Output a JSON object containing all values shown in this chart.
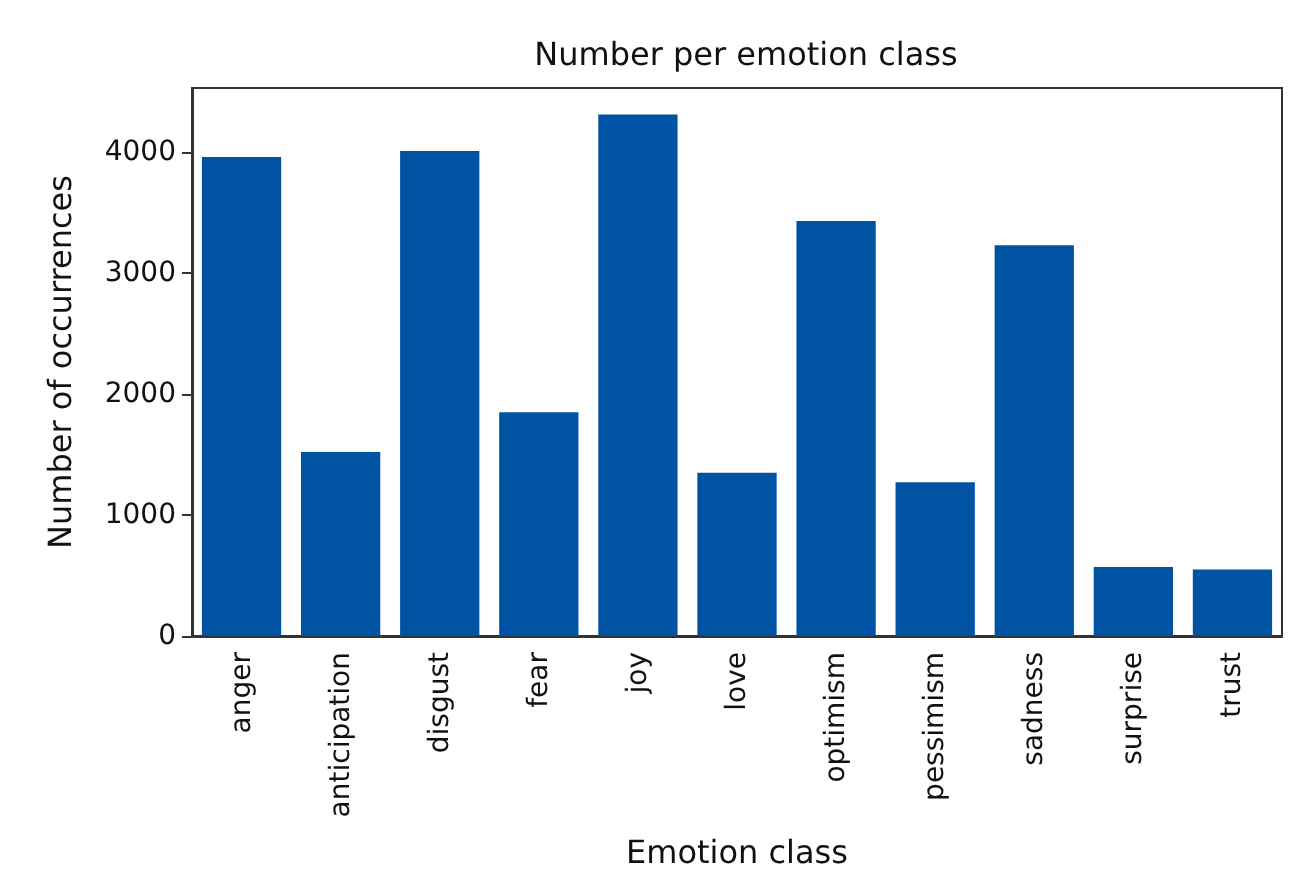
{
  "chart_data": {
    "type": "bar",
    "title": "Number per emotion class",
    "xlabel": "Emotion class",
    "ylabel": "Number of occurrences",
    "categories": [
      "anger",
      "anticipation",
      "disgust",
      "fear",
      "joy",
      "love",
      "optimism",
      "pessimism",
      "sadness",
      "surprise",
      "trust"
    ],
    "values": [
      3960,
      1520,
      4010,
      1850,
      4310,
      1350,
      3430,
      1270,
      3230,
      570,
      550
    ],
    "color": "#0052a3",
    "ylim": [
      0,
      4530
    ],
    "yticks": [
      0,
      1000,
      2000,
      3000,
      4000
    ],
    "grid": false
  }
}
